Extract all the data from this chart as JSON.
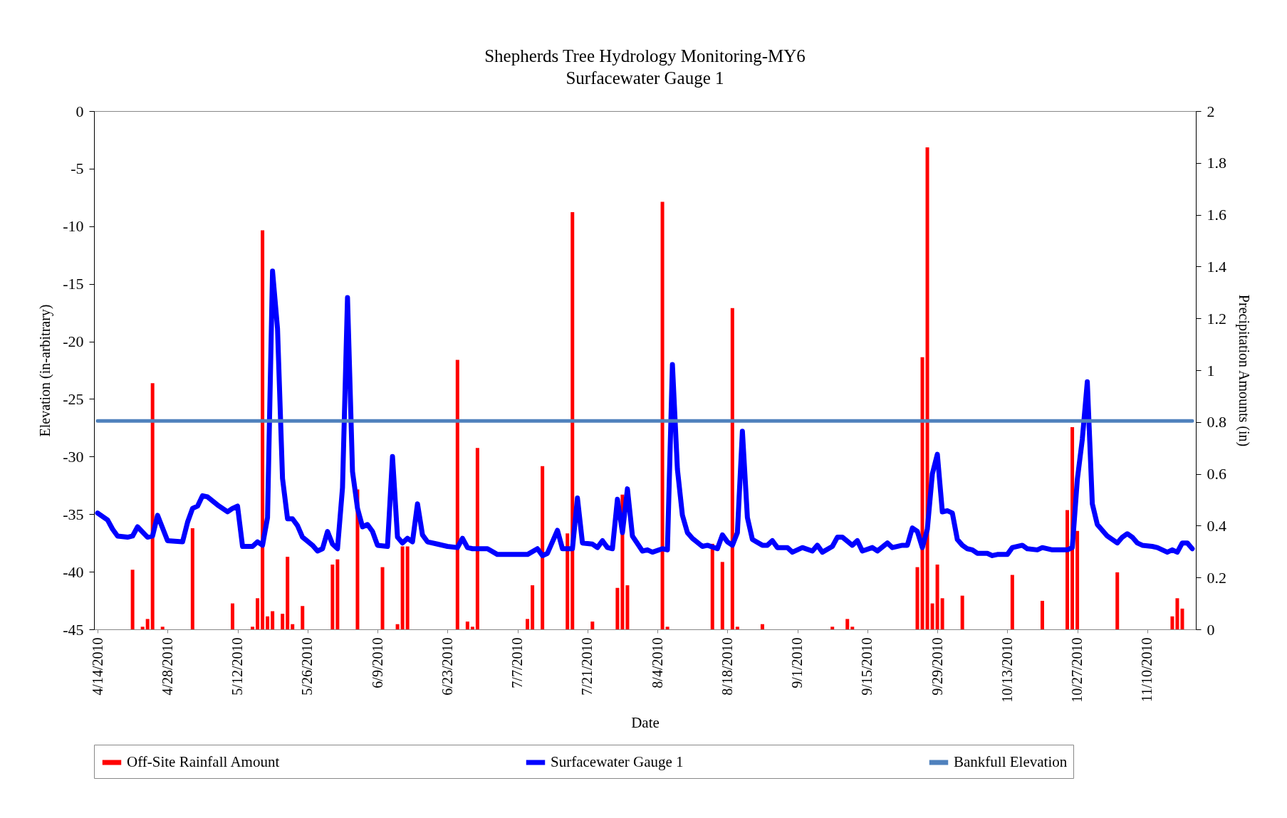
{
  "chart_data": {
    "type": "line",
    "title": "Shepherds Tree Hydrology Monitoring-MY6",
    "subtitle": "Surfacewater Gauge 1",
    "xlabel": "Date",
    "ylabel": "Elevation (in-arbitrary)",
    "y2label": "Precipitation Amounts (in)",
    "xlim": [
      "2010-04-14",
      "2010-11-19"
    ],
    "xticks": [
      {
        "value": "2010-04-14",
        "label": "4/14/2010"
      },
      {
        "value": "2010-04-28",
        "label": "4/28/2010"
      },
      {
        "value": "2010-05-12",
        "label": "5/12/2010"
      },
      {
        "value": "2010-05-26",
        "label": "5/26/2010"
      },
      {
        "value": "2010-06-09",
        "label": "6/9/2010"
      },
      {
        "value": "2010-06-23",
        "label": "6/23/2010"
      },
      {
        "value": "2010-07-07",
        "label": "7/7/2010"
      },
      {
        "value": "2010-07-21",
        "label": "7/21/2010"
      },
      {
        "value": "2010-08-04",
        "label": "8/4/2010"
      },
      {
        "value": "2010-08-18",
        "label": "8/18/2010"
      },
      {
        "value": "2010-09-01",
        "label": "9/1/2010"
      },
      {
        "value": "2010-09-15",
        "label": "9/15/2010"
      },
      {
        "value": "2010-09-29",
        "label": "9/29/2010"
      },
      {
        "value": "2010-10-13",
        "label": "10/13/2010"
      },
      {
        "value": "2010-10-27",
        "label": "10/27/2010"
      },
      {
        "value": "2010-11-10",
        "label": "11/10/2010"
      }
    ],
    "ylim": [
      -45,
      0
    ],
    "yticks": [
      -45,
      -40,
      -35,
      -30,
      -25,
      -20,
      -15,
      -10,
      -5,
      0
    ],
    "y2lim": [
      0,
      2
    ],
    "y2ticks": [
      0,
      0.2,
      0.4,
      0.6,
      0.8,
      1,
      1.2,
      1.4,
      1.6,
      1.8,
      2
    ],
    "grid": false,
    "legend": "bottom",
    "marker": "none",
    "series": [
      {
        "name": "Off-Site Rainfall Amount",
        "type": "bar",
        "axis": "y2",
        "color": "#ff0000",
        "x": [
          "2010-04-21",
          "2010-04-23",
          "2010-04-24",
          "2010-04-25",
          "2010-04-27",
          "2010-05-03",
          "2010-05-11",
          "2010-05-15",
          "2010-05-16",
          "2010-05-17",
          "2010-05-18",
          "2010-05-19",
          "2010-05-21",
          "2010-05-22",
          "2010-05-23",
          "2010-05-25",
          "2010-05-31",
          "2010-06-01",
          "2010-06-05",
          "2010-06-10",
          "2010-06-13",
          "2010-06-14",
          "2010-06-15",
          "2010-06-25",
          "2010-06-27",
          "2010-06-28",
          "2010-06-29",
          "2010-07-09",
          "2010-07-10",
          "2010-07-12",
          "2010-07-17",
          "2010-07-18",
          "2010-07-22",
          "2010-07-27",
          "2010-07-28",
          "2010-07-29",
          "2010-08-05",
          "2010-08-06",
          "2010-08-15",
          "2010-08-17",
          "2010-08-19",
          "2010-08-20",
          "2010-08-25",
          "2010-09-08",
          "2010-09-11",
          "2010-09-12",
          "2010-09-25",
          "2010-09-26",
          "2010-09-27",
          "2010-09-28",
          "2010-09-29",
          "2010-09-30",
          "2010-10-04",
          "2010-10-14",
          "2010-10-20",
          "2010-10-25",
          "2010-10-26",
          "2010-10-27",
          "2010-11-04",
          "2010-11-15",
          "2010-11-16",
          "2010-11-17"
        ],
        "values": [
          0.23,
          0.01,
          0.04,
          0.95,
          0.01,
          0.39,
          0.1,
          0.01,
          0.12,
          1.54,
          0.05,
          0.07,
          0.06,
          0.28,
          0.02,
          0.09,
          0.25,
          0.27,
          0.54,
          0.24,
          0.02,
          0.32,
          0.32,
          1.04,
          0.03,
          0.01,
          0.7,
          0.04,
          0.17,
          0.63,
          0.37,
          1.61,
          0.03,
          0.16,
          0.52,
          0.17,
          1.65,
          0.01,
          0.33,
          0.26,
          1.24,
          0.01,
          0.02,
          0.01,
          0.04,
          0.01,
          0.24,
          1.05,
          1.86,
          0.1,
          0.25,
          0.12,
          0.13,
          0.21,
          0.11,
          0.46,
          0.78,
          0.38,
          0.22,
          0.05,
          0.12,
          0.08
        ]
      },
      {
        "name": "Surfacewater Gauge 1",
        "color": "#0000ff",
        "line_style": "solid",
        "x": [
          "2010-04-14",
          "2010-04-16",
          "2010-04-17",
          "2010-04-18",
          "2010-04-20",
          "2010-04-21",
          "2010-04-22",
          "2010-04-24",
          "2010-04-25",
          "2010-04-26",
          "2010-04-28",
          "2010-05-01",
          "2010-05-02",
          "2010-05-03",
          "2010-05-04",
          "2010-05-05",
          "2010-05-06",
          "2010-05-08",
          "2010-05-10",
          "2010-05-11",
          "2010-05-12",
          "2010-05-13",
          "2010-05-15",
          "2010-05-16",
          "2010-05-17",
          "2010-05-18",
          "2010-05-19",
          "2010-05-20",
          "2010-05-21",
          "2010-05-22",
          "2010-05-23",
          "2010-05-24",
          "2010-05-25",
          "2010-05-27",
          "2010-05-28",
          "2010-05-29",
          "2010-05-30",
          "2010-05-31",
          "2010-06-01",
          "2010-06-02",
          "2010-06-03",
          "2010-06-04",
          "2010-06-05",
          "2010-06-06",
          "2010-06-07",
          "2010-06-08",
          "2010-06-09",
          "2010-06-11",
          "2010-06-12",
          "2010-06-13",
          "2010-06-14",
          "2010-06-15",
          "2010-06-16",
          "2010-06-17",
          "2010-06-18",
          "2010-06-19",
          "2010-06-21",
          "2010-06-23",
          "2010-06-25",
          "2010-06-26",
          "2010-06-27",
          "2010-06-28",
          "2010-07-01",
          "2010-07-03",
          "2010-07-09",
          "2010-07-11",
          "2010-07-12",
          "2010-07-13",
          "2010-07-15",
          "2010-07-16",
          "2010-07-18",
          "2010-07-19",
          "2010-07-20",
          "2010-07-22",
          "2010-07-23",
          "2010-07-24",
          "2010-07-25",
          "2010-07-26",
          "2010-07-27",
          "2010-07-28",
          "2010-07-29",
          "2010-07-30",
          "2010-08-01",
          "2010-08-02",
          "2010-08-03",
          "2010-08-05",
          "2010-08-06",
          "2010-08-07",
          "2010-08-08",
          "2010-08-09",
          "2010-08-10",
          "2010-08-11",
          "2010-08-13",
          "2010-08-14",
          "2010-08-16",
          "2010-08-17",
          "2010-08-18",
          "2010-08-19",
          "2010-08-20",
          "2010-08-21",
          "2010-08-22",
          "2010-08-23",
          "2010-08-25",
          "2010-08-26",
          "2010-08-27",
          "2010-08-28",
          "2010-08-30",
          "2010-08-31",
          "2010-09-02",
          "2010-09-04",
          "2010-09-05",
          "2010-09-06",
          "2010-09-08",
          "2010-09-09",
          "2010-09-10",
          "2010-09-12",
          "2010-09-13",
          "2010-09-14",
          "2010-09-16",
          "2010-09-17",
          "2010-09-19",
          "2010-09-20",
          "2010-09-22",
          "2010-09-23",
          "2010-09-24",
          "2010-09-25",
          "2010-09-26",
          "2010-09-27",
          "2010-09-28",
          "2010-09-29",
          "2010-09-30",
          "2010-10-01",
          "2010-10-02",
          "2010-10-03",
          "2010-10-04",
          "2010-10-05",
          "2010-10-06",
          "2010-10-07",
          "2010-10-09",
          "2010-10-10",
          "2010-10-11",
          "2010-10-13",
          "2010-10-14",
          "2010-10-16",
          "2010-10-17",
          "2010-10-19",
          "2010-10-20",
          "2010-10-22",
          "2010-10-25",
          "2010-10-26",
          "2010-10-27",
          "2010-10-28",
          "2010-10-29",
          "2010-10-30",
          "2010-10-31",
          "2010-11-02",
          "2010-11-04",
          "2010-11-05",
          "2010-11-06",
          "2010-11-07",
          "2010-11-08",
          "2010-11-09",
          "2010-11-11",
          "2010-11-12",
          "2010-11-14",
          "2010-11-15",
          "2010-11-16",
          "2010-11-17",
          "2010-11-18",
          "2010-11-19"
        ],
        "values": [
          -34.9,
          -35.5,
          -36.3,
          -36.9,
          -37.0,
          -36.9,
          -36.1,
          -37.0,
          -36.9,
          -35.1,
          -37.3,
          -37.4,
          -35.7,
          -34.5,
          -34.3,
          -33.4,
          -33.5,
          -34.2,
          -34.8,
          -34.5,
          -34.3,
          -37.8,
          -37.8,
          -37.4,
          -37.7,
          -35.3,
          -13.9,
          -18.9,
          -31.9,
          -35.4,
          -35.4,
          -36.0,
          -37.0,
          -37.7,
          -38.2,
          -38.0,
          -36.5,
          -37.6,
          -38.0,
          -32.7,
          -16.2,
          -31.3,
          -34.5,
          -36.1,
          -35.9,
          -36.5,
          -37.7,
          -37.8,
          -30.0,
          -37.0,
          -37.5,
          -37.1,
          -37.4,
          -34.1,
          -36.8,
          -37.4,
          -37.6,
          -37.8,
          -37.9,
          -37.1,
          -37.9,
          -38.0,
          -38.0,
          -38.5,
          -38.5,
          -38.0,
          -38.6,
          -38.4,
          -36.4,
          -38.0,
          -38.0,
          -33.6,
          -37.5,
          -37.6,
          -37.9,
          -37.3,
          -37.9,
          -38.0,
          -33.7,
          -36.6,
          -32.8,
          -36.9,
          -38.2,
          -38.1,
          -38.3,
          -38.0,
          -38.1,
          -22.0,
          -31.1,
          -35.1,
          -36.6,
          -37.1,
          -37.8,
          -37.7,
          -38.0,
          -36.8,
          -37.4,
          -37.7,
          -36.6,
          -27.8,
          -35.3,
          -37.2,
          -37.7,
          -37.7,
          -37.3,
          -37.9,
          -37.9,
          -38.3,
          -37.9,
          -38.2,
          -37.7,
          -38.3,
          -37.8,
          -37.0,
          -37.0,
          -37.7,
          -37.3,
          -38.2,
          -37.9,
          -38.2,
          -37.5,
          -37.9,
          -37.7,
          -37.7,
          -36.2,
          -36.5,
          -37.9,
          -36.3,
          -31.5,
          -29.8,
          -34.8,
          -34.7,
          -34.9,
          -37.2,
          -37.7,
          -38.0,
          -38.1,
          -38.4,
          -38.4,
          -38.6,
          -38.5,
          -38.5,
          -37.9,
          -37.7,
          -38.0,
          -38.1,
          -37.9,
          -38.1,
          -38.1,
          -37.9,
          -32.0,
          -28.5,
          -23.5,
          -34.1,
          -35.9,
          -36.9,
          -37.5,
          -37.0,
          -36.7,
          -37.0,
          -37.5,
          -37.7,
          -37.8,
          -37.9,
          -38.3,
          -38.1,
          -38.3,
          -37.5,
          -37.5,
          -38.0
        ]
      },
      {
        "name": "Bankfull Elevation",
        "color": "#4f81bd",
        "line_style": "solid",
        "x": [
          "2010-04-14",
          "2010-11-19"
        ],
        "values": [
          -26.9,
          -26.9
        ]
      }
    ]
  }
}
